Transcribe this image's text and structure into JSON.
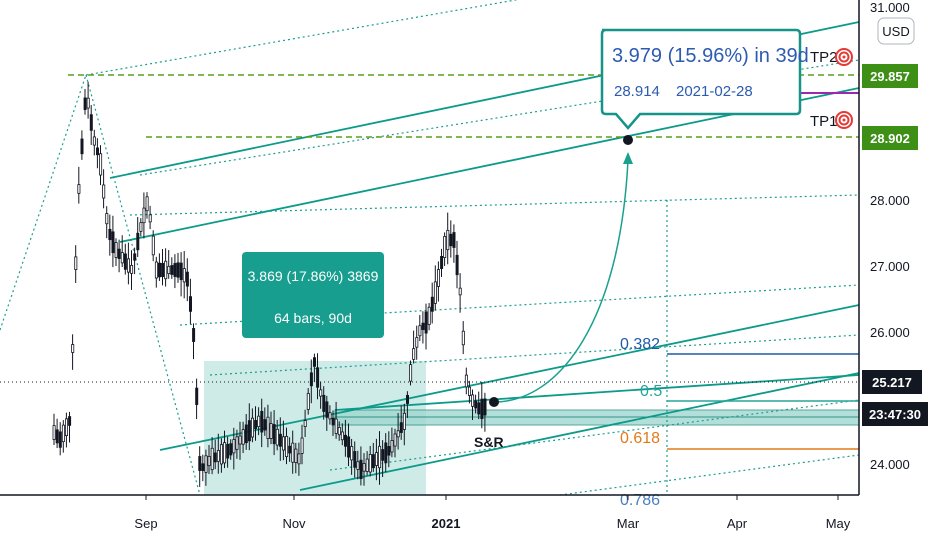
{
  "chart_data": {
    "type": "candlestick",
    "currency": "USD",
    "y_ticks": [
      "31.000",
      "28.000",
      "27.000",
      "26.000",
      "24.000"
    ],
    "ylim": [
      23.4,
      31.1
    ],
    "x_ticks": [
      "Sep",
      "Nov",
      "2021",
      "Mar",
      "Apr",
      "May"
    ],
    "price_labels": [
      {
        "value": "29.857",
        "kind": "green"
      },
      {
        "value": "28.902",
        "kind": "green"
      },
      {
        "value": "25.217",
        "kind": "dark"
      },
      {
        "value": "23:47:30",
        "kind": "dark"
      }
    ],
    "targets": [
      {
        "label": "TP2",
        "icon": "target-icon"
      },
      {
        "label": "TP1",
        "icon": "target-icon"
      }
    ],
    "fib_levels": [
      {
        "label": "0.382",
        "color": "#1e5aa8"
      },
      {
        "label": "0.5",
        "color": "#26a69a"
      },
      {
        "label": "0.618",
        "color": "#e07b1a"
      },
      {
        "label": "0.786",
        "color": "#4a7fc1"
      }
    ],
    "callout": {
      "headline": "3.979 (15.96%) in 39d",
      "price": "28.914",
      "date": "2021-02-28"
    },
    "range_box": {
      "line1": "3.869 (17.86%) 3869",
      "line2": "64 bars, 90d"
    },
    "sr_label": "S&R"
  },
  "colors": {
    "channel": "#0c9a8a",
    "target_dash": "#5a9e1b",
    "range_fill": "#b9e3dd",
    "label_green": "#3d8f16",
    "label_dark": "#131722",
    "callout_border": "#17948a",
    "callout_text": "#2c5bb0"
  }
}
